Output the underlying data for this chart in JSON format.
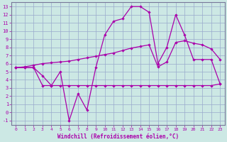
{
  "xlabel": "Windchill (Refroidissement éolien,°C)",
  "bg_color": "#cce8e4",
  "line_color": "#aa00aa",
  "grid_color": "#99aacc",
  "xlim": [
    -0.5,
    23.5
  ],
  "ylim": [
    -1.5,
    13.5
  ],
  "xticks": [
    0,
    1,
    2,
    3,
    4,
    5,
    6,
    7,
    8,
    9,
    10,
    11,
    12,
    13,
    14,
    15,
    16,
    17,
    18,
    19,
    20,
    21,
    22,
    23
  ],
  "yticks": [
    -1,
    0,
    1,
    2,
    3,
    4,
    5,
    6,
    7,
    8,
    9,
    10,
    11,
    12,
    13
  ],
  "line1_x": [
    0,
    1,
    2,
    3,
    4,
    5,
    6,
    7,
    8,
    9,
    10,
    11,
    12,
    13,
    14,
    15,
    16,
    17,
    18,
    19,
    20,
    21,
    22,
    23
  ],
  "line1_y": [
    5.5,
    5.5,
    5.5,
    3.3,
    3.3,
    3.3,
    3.3,
    3.3,
    3.3,
    3.3,
    3.3,
    3.3,
    3.3,
    3.3,
    3.3,
    3.3,
    3.3,
    3.3,
    3.3,
    3.3,
    3.3,
    3.3,
    3.3,
    3.5
  ],
  "line2_x": [
    0,
    1,
    2,
    3,
    4,
    5,
    6,
    7,
    8,
    9,
    10,
    11,
    12,
    13,
    14,
    15,
    16,
    17,
    18,
    19,
    20,
    21,
    22,
    23
  ],
  "line2_y": [
    5.5,
    5.6,
    5.8,
    6.0,
    6.1,
    6.2,
    6.3,
    6.5,
    6.7,
    6.9,
    7.1,
    7.3,
    7.6,
    7.9,
    8.1,
    8.3,
    5.6,
    6.2,
    8.6,
    8.8,
    8.5,
    8.3,
    7.8,
    6.5
  ],
  "line3_x": [
    0,
    1,
    2,
    3,
    4,
    5,
    6,
    7,
    8,
    9,
    10,
    11,
    12,
    13,
    14,
    15,
    16,
    17,
    18,
    19,
    20,
    21,
    22,
    23
  ],
  "line3_y": [
    5.5,
    5.5,
    5.5,
    4.5,
    3.3,
    5.0,
    -1.0,
    2.3,
    0.3,
    5.5,
    9.5,
    11.2,
    11.5,
    13.0,
    13.0,
    12.3,
    6.0,
    8.0,
    12.0,
    9.5,
    6.5,
    6.5,
    6.5,
    3.5
  ]
}
